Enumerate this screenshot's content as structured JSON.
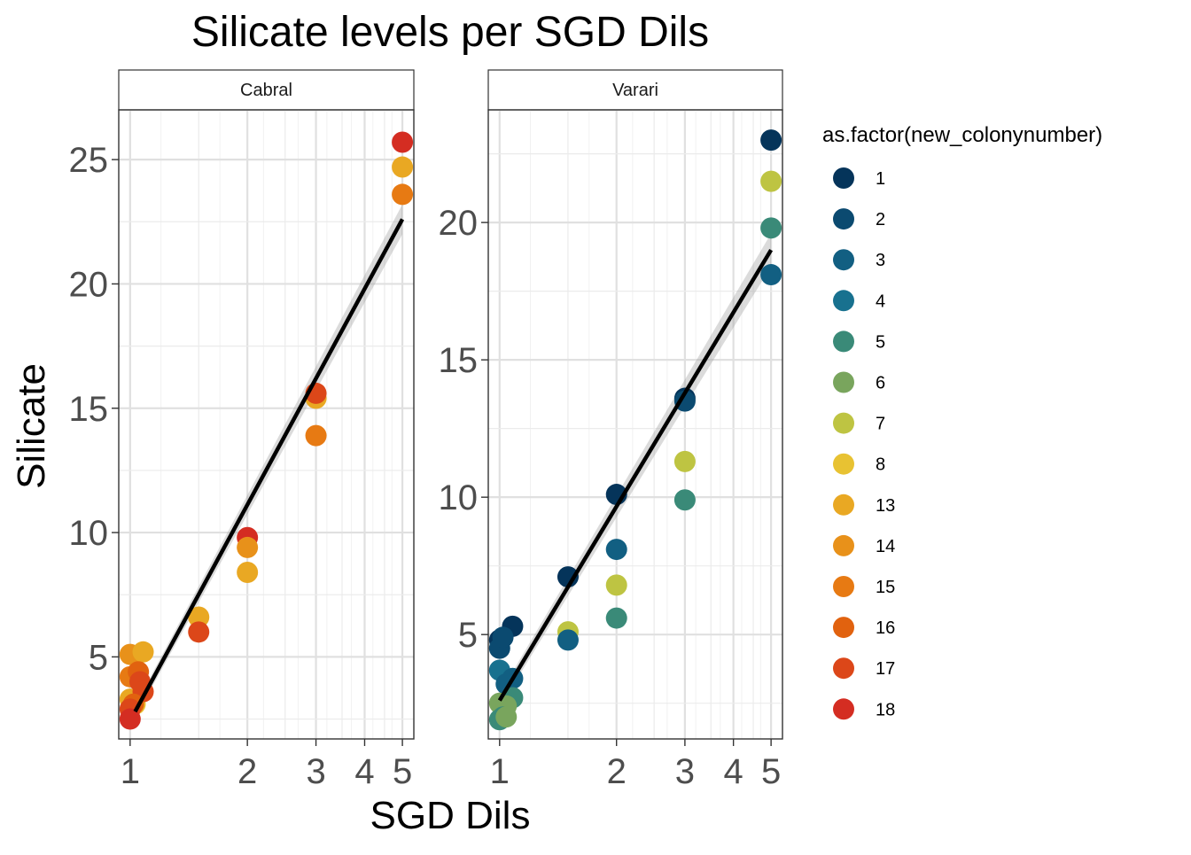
{
  "chart_data": {
    "type": "scatter",
    "title": "Silicate levels per SGD Dils",
    "xlabel": "SGD Dils",
    "ylabel": "Silicate",
    "x_scale": "log",
    "x_ticks": [
      1,
      2,
      3,
      4,
      5
    ],
    "legend_title": "as.factor(new_colonynumber)",
    "legend_position": "right",
    "grid": true,
    "legend": [
      {
        "label": "1",
        "color": "#05345A"
      },
      {
        "label": "2",
        "color": "#0B4A70"
      },
      {
        "label": "3",
        "color": "#125F82"
      },
      {
        "label": "4",
        "color": "#18718F"
      },
      {
        "label": "5",
        "color": "#3A8A78"
      },
      {
        "label": "6",
        "color": "#79A55D"
      },
      {
        "label": "7",
        "color": "#BEC442"
      },
      {
        "label": "8",
        "color": "#E8C232"
      },
      {
        "label": "13",
        "color": "#E9A823"
      },
      {
        "label": "14",
        "color": "#E8911A"
      },
      {
        "label": "15",
        "color": "#E77A13"
      },
      {
        "label": "16",
        "color": "#E1620F"
      },
      {
        "label": "17",
        "color": "#DC4719"
      },
      {
        "label": "18",
        "color": "#D42D22"
      }
    ],
    "panels": [
      {
        "name": "Cabral",
        "ylim": [
          1.7,
          27.0
        ],
        "y_ticks": [
          5,
          10,
          15,
          20,
          25
        ],
        "fit": {
          "x": [
            1.03,
            5.0
          ],
          "y": [
            2.8,
            22.6
          ],
          "ci_width": 0.6
        },
        "points": [
          {
            "x": 5.0,
            "y": 25.7,
            "g": "18"
          },
          {
            "x": 5.0,
            "y": 24.7,
            "g": "13"
          },
          {
            "x": 5.0,
            "y": 23.6,
            "g": "15"
          },
          {
            "x": 3.0,
            "y": 15.4,
            "g": "13"
          },
          {
            "x": 3.0,
            "y": 15.6,
            "g": "17"
          },
          {
            "x": 3.0,
            "y": 13.9,
            "g": "15"
          },
          {
            "x": 2.0,
            "y": 9.8,
            "g": "18"
          },
          {
            "x": 2.0,
            "y": 9.4,
            "g": "14"
          },
          {
            "x": 2.0,
            "y": 8.4,
            "g": "13"
          },
          {
            "x": 1.5,
            "y": 6.6,
            "g": "13"
          },
          {
            "x": 1.5,
            "y": 6.0,
            "g": "17"
          },
          {
            "x": 1.0,
            "y": 5.1,
            "g": "14"
          },
          {
            "x": 1.08,
            "y": 5.2,
            "g": "13"
          },
          {
            "x": 1.0,
            "y": 4.2,
            "g": "15"
          },
          {
            "x": 1.05,
            "y": 4.4,
            "g": "16"
          },
          {
            "x": 1.06,
            "y": 4.0,
            "g": "17"
          },
          {
            "x": 1.0,
            "y": 3.3,
            "g": "13"
          },
          {
            "x": 1.03,
            "y": 3.1,
            "g": "8"
          },
          {
            "x": 1.08,
            "y": 3.6,
            "g": "17"
          },
          {
            "x": 1.02,
            "y": 3.1,
            "g": "16"
          },
          {
            "x": 1.0,
            "y": 2.9,
            "g": "17"
          },
          {
            "x": 1.0,
            "y": 2.5,
            "g": "18"
          }
        ]
      },
      {
        "name": "Varari",
        "ylim": [
          1.2,
          24.1
        ],
        "y_ticks": [
          5,
          10,
          15,
          20
        ],
        "fit": {
          "x": [
            1.0,
            5.0
          ],
          "y": [
            2.6,
            19.0
          ],
          "ci_width": 0.6
        },
        "points": [
          {
            "x": 5.0,
            "y": 23.0,
            "g": "1"
          },
          {
            "x": 5.0,
            "y": 21.5,
            "g": "7"
          },
          {
            "x": 5.0,
            "y": 19.8,
            "g": "5"
          },
          {
            "x": 5.0,
            "y": 18.1,
            "g": "3"
          },
          {
            "x": 3.0,
            "y": 13.6,
            "g": "1"
          },
          {
            "x": 3.0,
            "y": 13.5,
            "g": "2"
          },
          {
            "x": 3.0,
            "y": 11.3,
            "g": "7"
          },
          {
            "x": 3.0,
            "y": 9.9,
            "g": "5"
          },
          {
            "x": 2.0,
            "y": 10.1,
            "g": "1"
          },
          {
            "x": 2.0,
            "y": 8.1,
            "g": "3"
          },
          {
            "x": 2.0,
            "y": 6.8,
            "g": "7"
          },
          {
            "x": 2.0,
            "y": 5.6,
            "g": "5"
          },
          {
            "x": 1.5,
            "y": 7.1,
            "g": "1"
          },
          {
            "x": 1.5,
            "y": 5.1,
            "g": "7"
          },
          {
            "x": 1.5,
            "y": 4.8,
            "g": "3"
          },
          {
            "x": 1.08,
            "y": 5.3,
            "g": "1"
          },
          {
            "x": 1.0,
            "y": 4.8,
            "g": "1"
          },
          {
            "x": 1.0,
            "y": 4.5,
            "g": "2"
          },
          {
            "x": 1.02,
            "y": 4.9,
            "g": "2"
          },
          {
            "x": 1.0,
            "y": 3.7,
            "g": "4"
          },
          {
            "x": 1.08,
            "y": 3.4,
            "g": "3"
          },
          {
            "x": 1.04,
            "y": 3.2,
            "g": "3"
          },
          {
            "x": 1.0,
            "y": 2.5,
            "g": "6"
          },
          {
            "x": 1.08,
            "y": 2.7,
            "g": "5"
          },
          {
            "x": 1.04,
            "y": 2.4,
            "g": "6"
          },
          {
            "x": 1.02,
            "y": 2.0,
            "g": "5"
          },
          {
            "x": 1.0,
            "y": 1.9,
            "g": "5"
          },
          {
            "x": 1.04,
            "y": 2.0,
            "g": "6"
          }
        ]
      }
    ]
  }
}
